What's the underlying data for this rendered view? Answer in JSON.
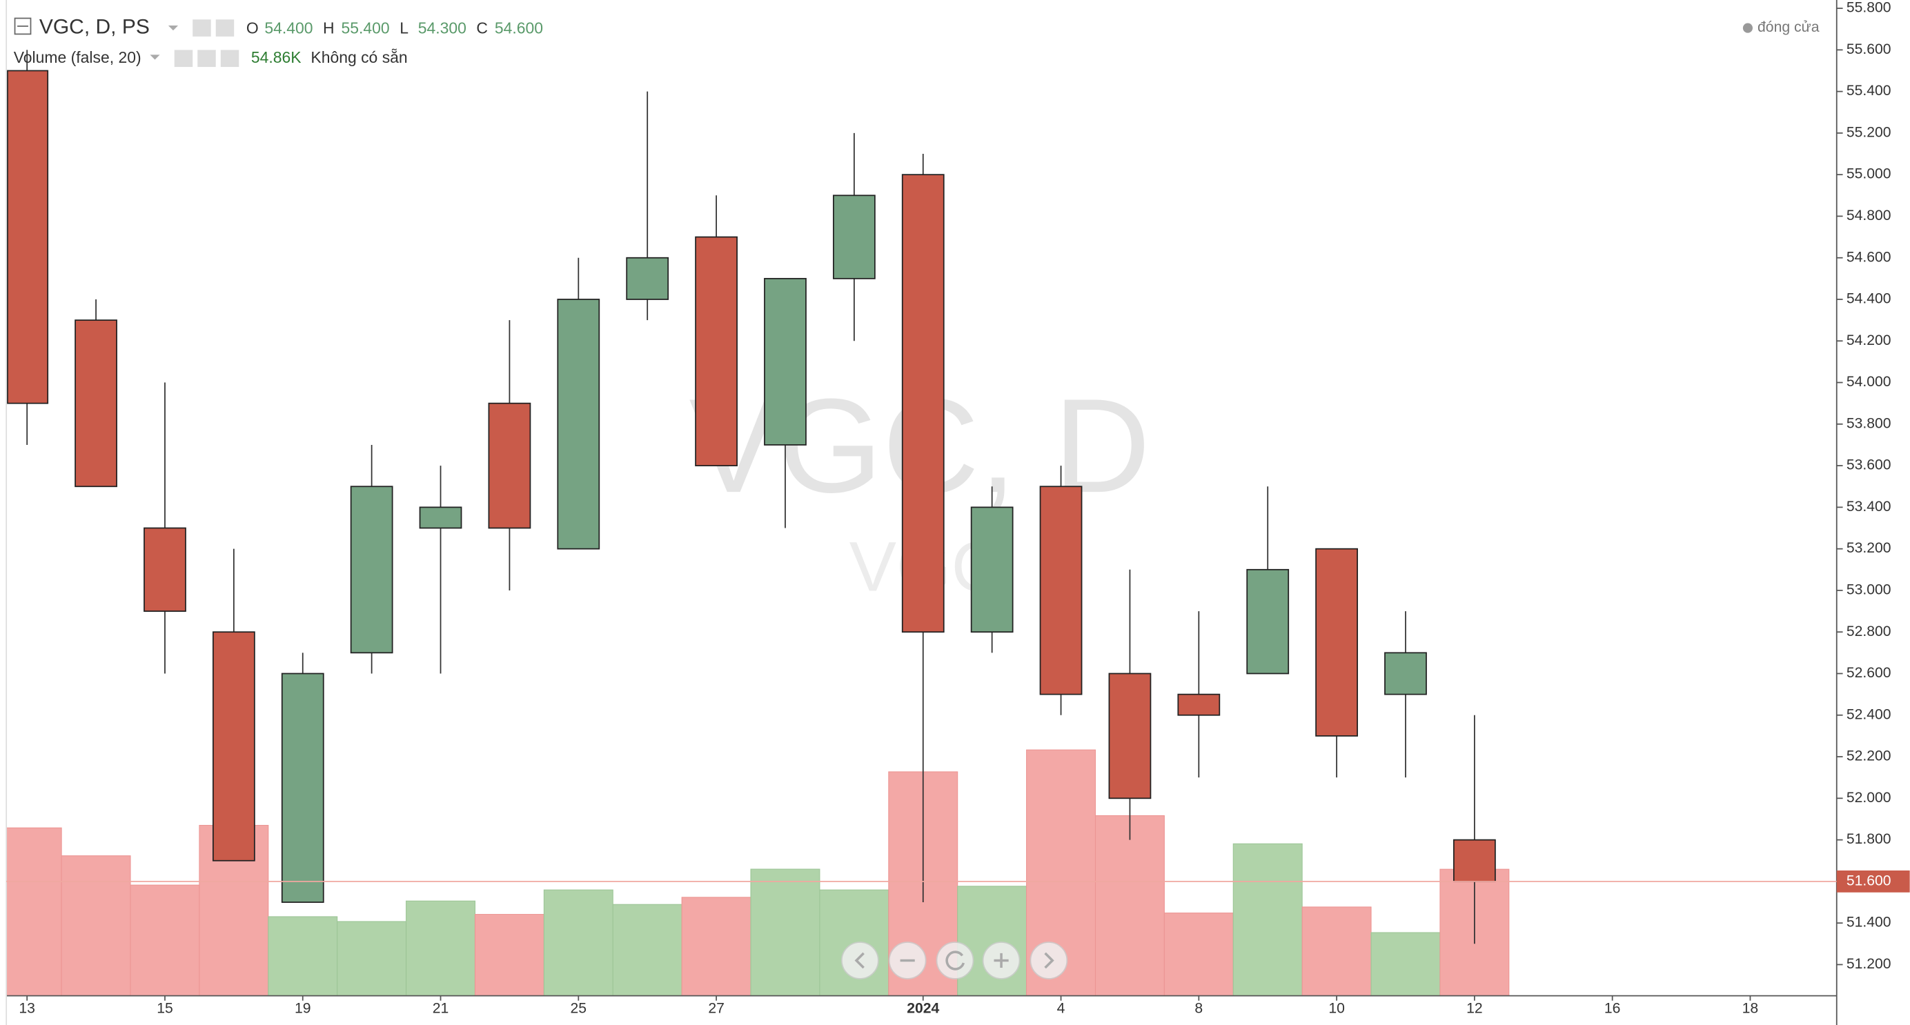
{
  "chart_data": {
    "type": "candlestick",
    "title": "VGC, D, PS",
    "header_ohlc": [
      {
        "label": "O",
        "value": "54.400"
      },
      {
        "label": "H",
        "value": "55.400"
      },
      {
        "label": "L",
        "value": "54.300"
      },
      {
        "label": "C",
        "value": "54.600"
      }
    ],
    "volume_title": "Volume (false, 20)",
    "volume_last": "54.86K",
    "volume_status": "Không có sẵn",
    "legend_close": "đóng cửa",
    "watermark": "VGC, D",
    "watermark_sub": "VGC",
    "categories": [
      "13",
      null,
      "15",
      null,
      "19",
      null,
      "21",
      null,
      "25",
      null,
      "27",
      null,
      null,
      "2024",
      null,
      "4",
      null,
      "8",
      null,
      "10",
      null,
      "12",
      null,
      "16",
      null,
      "18"
    ],
    "open": [
      55.5,
      54.3,
      53.3,
      52.8,
      51.5,
      52.7,
      53.3,
      53.9,
      53.2,
      54.4,
      54.7,
      53.7,
      54.5,
      55.0,
      52.8,
      53.5,
      52.6,
      52.5,
      52.6,
      53.2,
      52.5,
      51.8,
      null,
      null,
      null,
      null
    ],
    "high": [
      55.6,
      54.4,
      54.0,
      53.2,
      52.7,
      53.7,
      53.6,
      54.3,
      54.6,
      55.4,
      54.9,
      54.5,
      55.2,
      55.1,
      53.5,
      53.6,
      53.1,
      52.9,
      53.5,
      53.2,
      52.9,
      52.4,
      null,
      null,
      null,
      null
    ],
    "low": [
      53.7,
      53.5,
      52.6,
      51.7,
      51.5,
      52.6,
      52.6,
      53.0,
      53.2,
      54.3,
      53.6,
      53.3,
      54.2,
      51.5,
      52.7,
      52.4,
      51.8,
      52.1,
      52.6,
      52.1,
      52.1,
      51.3,
      null,
      null,
      null,
      null
    ],
    "close": [
      53.9,
      53.5,
      52.9,
      51.7,
      52.6,
      53.5,
      53.4,
      53.3,
      54.4,
      54.6,
      53.6,
      54.5,
      54.9,
      52.8,
      53.4,
      52.5,
      52.0,
      52.4,
      53.1,
      52.3,
      52.7,
      51.6,
      null,
      null,
      null,
      null
    ],
    "volume": [
      72.8,
      60.7,
      48.0,
      73.9,
      34.3,
      32.2,
      41.1,
      35.3,
      45.9,
      39.6,
      42.7,
      54.9,
      45.9,
      97.1,
      47.5,
      106.6,
      78.1,
      35.9,
      65.9,
      38.5,
      27.4,
      54.86,
      null,
      null,
      null,
      null
    ],
    "up_color": "#76a383",
    "down_color": "#c95b4a",
    "volume_up_color": "#b0d3a9",
    "volume_down_color": "#f3a8a6",
    "last_price_label": "51.600",
    "ylim": [
      51.05,
      55.84
    ],
    "yticks": [
      {
        "value": 51.2,
        "label": "51.200"
      },
      {
        "value": 51.4,
        "label": "51.400"
      },
      {
        "value": 51.8,
        "label": "51.800"
      },
      {
        "value": 52.0,
        "label": "52.000"
      },
      {
        "value": 52.2,
        "label": "52.200"
      },
      {
        "value": 52.4,
        "label": "52.400"
      },
      {
        "value": 52.6,
        "label": "52.600"
      },
      {
        "value": 52.8,
        "label": "52.800"
      },
      {
        "value": 53.0,
        "label": "53.000"
      },
      {
        "value": 53.2,
        "label": "53.200"
      },
      {
        "value": 53.4,
        "label": "53.400"
      },
      {
        "value": 53.6,
        "label": "53.600"
      },
      {
        "value": 53.8,
        "label": "53.800"
      },
      {
        "value": 54.0,
        "label": "54.000"
      },
      {
        "value": 54.2,
        "label": "54.200"
      },
      {
        "value": 54.4,
        "label": "54.400"
      },
      {
        "value": 54.6,
        "label": "54.600"
      },
      {
        "value": 54.8,
        "label": "54.800"
      },
      {
        "value": 55.0,
        "label": "55.000"
      },
      {
        "value": 55.2,
        "label": "55.200"
      },
      {
        "value": 55.4,
        "label": "55.400"
      },
      {
        "value": 55.6,
        "label": "55.600"
      },
      {
        "value": 55.8,
        "label": "55.800"
      }
    ],
    "grid": false
  }
}
